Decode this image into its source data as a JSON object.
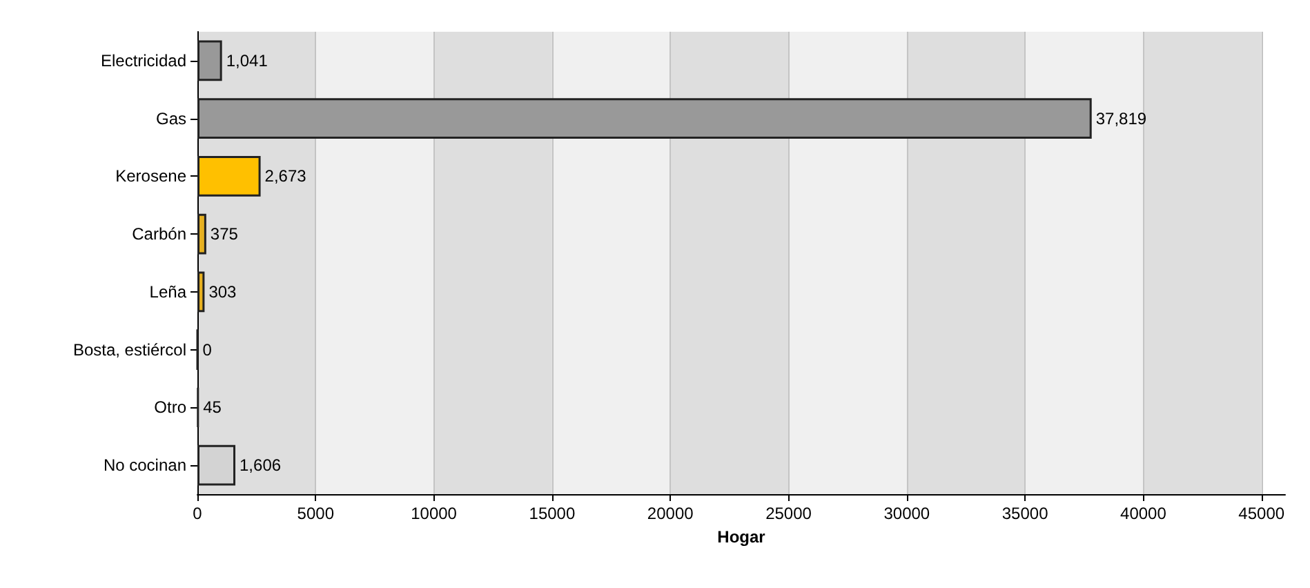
{
  "chart_data": {
    "type": "bar",
    "orientation": "horizontal",
    "xlabel": "Hogar",
    "categories": [
      "Electricidad",
      "Gas",
      "Kerosene",
      "Carbón",
      "Leña",
      "Bosta, estiércol",
      "Otro",
      "No cocinan"
    ],
    "values": [
      1041,
      37819,
      2673,
      375,
      303,
      0,
      45,
      1606
    ],
    "value_labels": [
      "1,041",
      "37,819",
      "2,673",
      "375",
      "303",
      "0",
      "45",
      "1,606"
    ],
    "colors": [
      "#999999",
      "#999999",
      "#ffc000",
      "#e6b020",
      "#e6b020",
      "#222222",
      "#222222",
      "#d3d3d3"
    ],
    "xlim": [
      0,
      46000
    ],
    "xticks": [
      0,
      5000,
      10000,
      15000,
      20000,
      25000,
      30000,
      35000,
      40000,
      45000
    ],
    "grid": "x"
  }
}
